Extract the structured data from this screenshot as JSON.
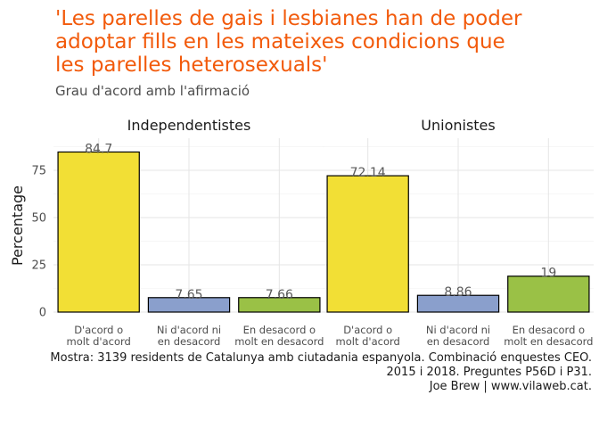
{
  "title_lines": [
    "'Les parelles de gais i lesbianes han de poder",
    "adoptar fills en les mateixes condicions que",
    "les parelles heterosexuals'"
  ],
  "subtitle": "Grau d'acord amb l'afirmació",
  "caption_lines": [
    "Mostra: 3139 residents de Catalunya amb ciutadania espanyola. Combinació enquestes CEO.",
    "2015 i 2018. Preguntes P56D i P31.",
    "Joe Brew | www.vilaweb.cat."
  ],
  "chart_data": {
    "type": "bar",
    "ylabel": "Percentage",
    "ylim": [
      0,
      92
    ],
    "yticks": [
      0,
      25,
      50,
      75
    ],
    "grid": true,
    "categories": [
      [
        "D'acord o",
        "molt d'acord"
      ],
      [
        "Ni d'acord ni",
        "en desacord"
      ],
      [
        "En desacord o",
        "molt en desacord"
      ]
    ],
    "category_colors": [
      "#f2df35",
      "#8a9fcc",
      "#9ac146"
    ],
    "panels": [
      {
        "name": "Independentistes",
        "values": [
          84.7,
          7.65,
          7.66
        ],
        "labels": [
          "84.7",
          "7.65",
          "7.66"
        ]
      },
      {
        "name": "Unionistes",
        "values": [
          72.14,
          8.86,
          19
        ],
        "labels": [
          "72.14",
          "8.86",
          "19"
        ]
      }
    ]
  }
}
